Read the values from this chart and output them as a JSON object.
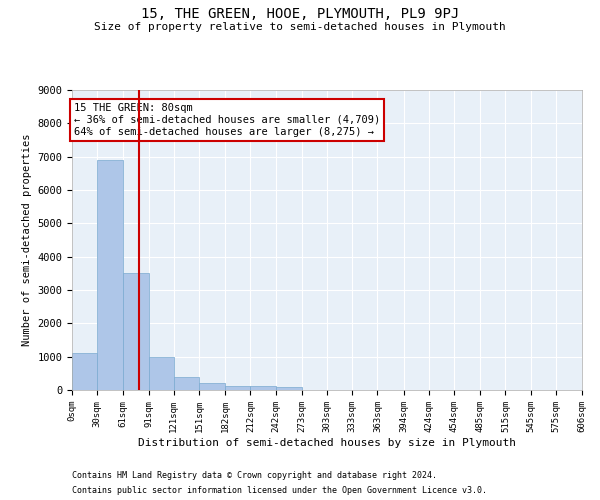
{
  "title": "15, THE GREEN, HOOE, PLYMOUTH, PL9 9PJ",
  "subtitle": "Size of property relative to semi-detached houses in Plymouth",
  "xlabel": "Distribution of semi-detached houses by size in Plymouth",
  "ylabel": "Number of semi-detached properties",
  "annotation_title": "15 THE GREEN: 80sqm",
  "annotation_line1": "← 36% of semi-detached houses are smaller (4,709)",
  "annotation_line2": "64% of semi-detached houses are larger (8,275) →",
  "property_size_sqm": 80,
  "bin_edges": [
    0,
    30,
    61,
    91,
    121,
    151,
    182,
    212,
    242,
    273,
    303,
    333,
    363,
    394,
    424,
    454,
    485,
    515,
    545,
    575,
    606
  ],
  "bar_heights": [
    1100,
    6900,
    3500,
    1000,
    400,
    200,
    130,
    110,
    90,
    0,
    0,
    0,
    0,
    0,
    0,
    0,
    0,
    0,
    0,
    0
  ],
  "bar_color": "#aec6e8",
  "bar_edgecolor": "#7aaad0",
  "bg_color": "#e8f0f8",
  "grid_color": "#ffffff",
  "vline_color": "#cc0000",
  "vline_x": 80,
  "ylim": [
    0,
    9000
  ],
  "yticks": [
    0,
    1000,
    2000,
    3000,
    4000,
    5000,
    6000,
    7000,
    8000,
    9000
  ],
  "annotation_box_color": "#ffffff",
  "annotation_box_edgecolor": "#cc0000",
  "footnote1": "Contains HM Land Registry data © Crown copyright and database right 2024.",
  "footnote2": "Contains public sector information licensed under the Open Government Licence v3.0."
}
